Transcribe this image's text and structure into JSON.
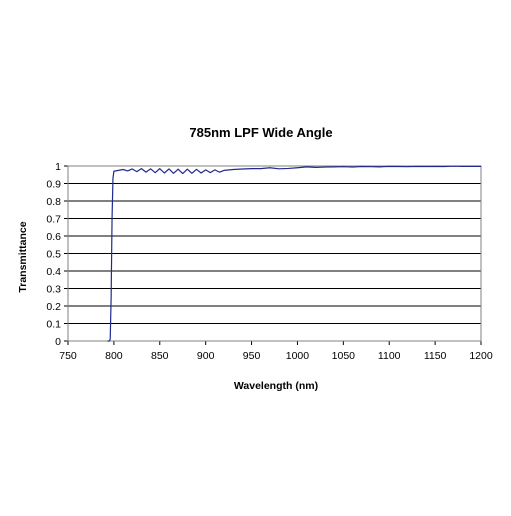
{
  "chart_data": {
    "type": "line",
    "title": "785nm LPF Wide Angle",
    "xlabel": "Wavelength (nm)",
    "ylabel": "Transmittance",
    "xlim": [
      750,
      1200
    ],
    "ylim": [
      0,
      1
    ],
    "x_ticks": [
      "750",
      "800",
      "850",
      "900",
      "950",
      "1000",
      "1050",
      "1100",
      "1150",
      "1200"
    ],
    "y_ticks": [
      "0",
      "0.1",
      "0.2",
      "0.3",
      "0.4",
      "0.5",
      "0.6",
      "0.7",
      "0.8",
      "0.9",
      "1"
    ],
    "grid": "horizontal",
    "legend": "none",
    "line_color": "#1f2a8c",
    "series": [
      {
        "x": [
          793,
          794,
          795,
          796,
          797,
          798,
          799,
          800,
          805,
          810,
          815,
          820,
          825,
          830,
          835,
          840,
          845,
          850,
          855,
          860,
          865,
          870,
          875,
          880,
          885,
          890,
          895,
          900,
          905,
          910,
          915,
          920,
          930,
          940,
          950,
          960,
          970,
          980,
          990,
          1000,
          1010,
          1020,
          1030,
          1040,
          1050,
          1060,
          1070,
          1080,
          1090,
          1100,
          1110,
          1120,
          1130,
          1140,
          1150,
          1160,
          1170,
          1180,
          1190,
          1200
        ],
        "y": [
          0.0,
          0.0,
          0.0,
          0.01,
          0.25,
          0.7,
          0.93,
          0.97,
          0.975,
          0.98,
          0.972,
          0.983,
          0.968,
          0.985,
          0.965,
          0.984,
          0.962,
          0.985,
          0.96,
          0.983,
          0.958,
          0.982,
          0.957,
          0.982,
          0.958,
          0.981,
          0.96,
          0.978,
          0.962,
          0.978,
          0.965,
          0.975,
          0.98,
          0.983,
          0.985,
          0.985,
          0.99,
          0.984,
          0.986,
          0.99,
          0.995,
          0.992,
          0.994,
          0.995,
          0.996,
          0.994,
          0.997,
          0.996,
          0.995,
          0.998,
          0.997,
          0.996,
          0.998,
          0.997,
          0.998,
          0.997,
          0.999,
          0.998,
          0.998,
          0.998
        ]
      }
    ]
  }
}
